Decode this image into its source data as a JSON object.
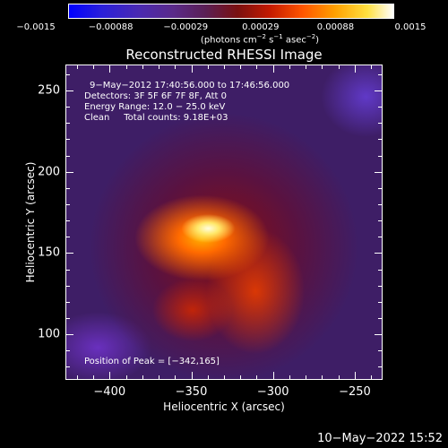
{
  "colorbar": {
    "ticks": [
      "−0.0015",
      "−0.00088",
      "−0.00029",
      "0.00029",
      "0.00088",
      "0.0015"
    ],
    "units_prefix": "(photons cm",
    "units_exp1": "−2",
    "units_mid": " s",
    "units_exp2": "−1",
    "units_mid2": " asec",
    "units_exp3": "−2",
    "units_suffix": ")"
  },
  "chart_data": {
    "type": "heatmap",
    "title": "Reconstructed RHESSI Image",
    "xlabel": "Heliocentric X (arcsec)",
    "ylabel": "Heliocentric Y (arcsec)",
    "xlim": [
      -427,
      -233
    ],
    "ylim": [
      72,
      266
    ],
    "xticks": [
      -400,
      -350,
      -300,
      -250
    ],
    "yticks": [
      100,
      150,
      200,
      250
    ],
    "xtick_labels": [
      "−400",
      "−350",
      "−300",
      "−250"
    ],
    "ytick_labels": [
      "100",
      "150",
      "200",
      "250"
    ],
    "color_range": [
      -0.0015,
      0.0015
    ],
    "peak": [
      -342,
      165
    ],
    "annotations": {
      "time_range": "9−May−2012 17:40:56.000 to 17:46:56.000",
      "detectors": "Detectors: 3F 5F 6F 7F 8F, Att 0",
      "energy": "Energy Range: 12.0 − 25.0 keV",
      "clean": "Clean     Total counts: 9.18E+03",
      "peak_label": "Position of Peak = [−342,165]"
    }
  },
  "footer": {
    "timestamp": "10−May−2022 15:52"
  }
}
